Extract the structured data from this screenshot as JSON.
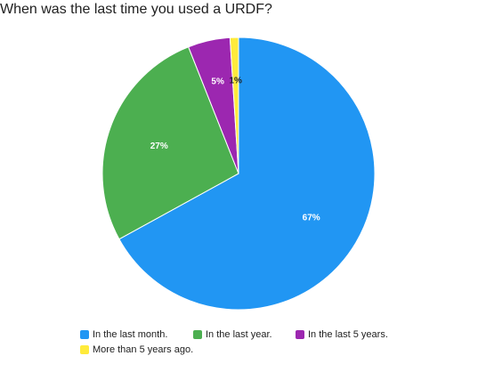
{
  "chart_data": {
    "type": "pie",
    "title": "When was the last time you used a URDF?",
    "legend_position": "bottom",
    "slices": [
      {
        "label": "In the last month.",
        "value": 67,
        "value_label": "67%",
        "color": "#2196F3"
      },
      {
        "label": "In the last year.",
        "value": 27,
        "value_label": "27%",
        "color": "#4CAF50"
      },
      {
        "label": "In the last 5 years.",
        "value": 5,
        "value_label": "5%",
        "color": "#9C27B0"
      },
      {
        "label": "More than 5 years ago.",
        "value": 1,
        "value_label": "1%",
        "color": "#FFEB3B"
      }
    ]
  }
}
